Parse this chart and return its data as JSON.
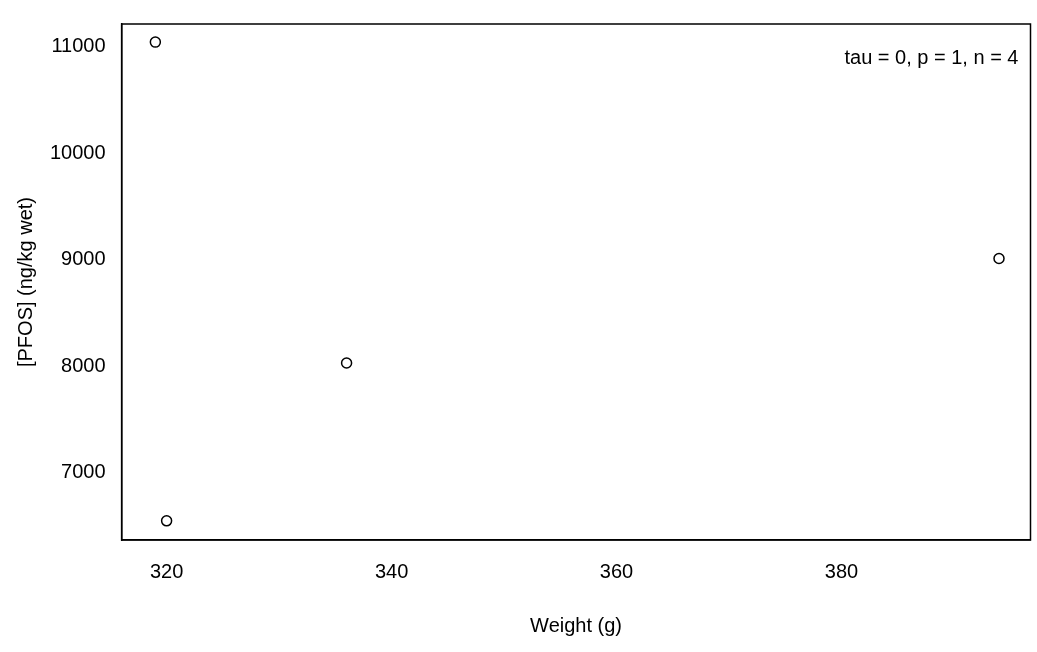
{
  "chart_data": {
    "type": "scatter",
    "xlabel": "Weight (g)",
    "ylabel": "[PFOS] (ng/kg wet)",
    "x": [
      319,
      320,
      336,
      394
    ],
    "series": [
      {
        "color": "#000000",
        "values": [
          11040,
          6550,
          8030,
          9010
        ]
      }
    ],
    "xlim": [
      316,
      396.8
    ],
    "xticks": [
      320,
      340,
      360,
      380
    ],
    "ylim": [
      6370,
      11210
    ],
    "yticks": [
      7000,
      8000,
      9000,
      10000,
      11000
    ],
    "grid": false,
    "legend": false,
    "marker": "circle",
    "annotations": [
      "tau = 0, p = 1, n = 4"
    ]
  }
}
